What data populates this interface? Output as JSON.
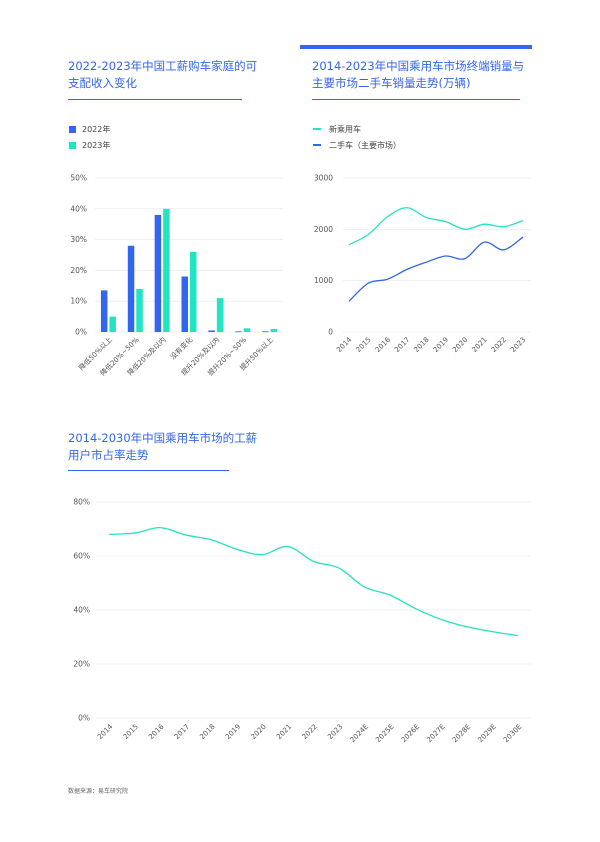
{
  "header": {
    "title1": "2022-2023年中国工薪购车家庭的可支配收入变化",
    "title2": "2014-2023年中国乘用车市场终端销量与主要市场二手车销量走势(万辆)",
    "title3": "2014-2030年中国乘用车市场的工薪用户市占率走势"
  },
  "legend1": [
    "2022年",
    "2023年"
  ],
  "legend2": [
    "新乘用车",
    "二手车（主要市场）"
  ],
  "source": "数据来源：易车研究院",
  "colors": {
    "blue": "#3366ee",
    "teal": "#22e3c2",
    "grid": "#e6e6e6",
    "axis_text": "#555555"
  },
  "chart_data": [
    {
      "type": "bar",
      "categories": [
        "降低50%以上",
        "降低20%~50%",
        "降低20%及以内",
        "没有变化",
        "提升20%及以内",
        "提升20%~50%",
        "提升50%以上"
      ],
      "series": [
        {
          "name": "2022年",
          "values": [
            13.5,
            28,
            38,
            18,
            0.5,
            0.2,
            0.2
          ]
        },
        {
          "name": "2023年",
          "values": [
            5,
            14,
            40,
            26,
            11,
            1.2,
            1
          ]
        }
      ],
      "yticks": [
        "0%",
        "10%",
        "20%",
        "30%",
        "40%",
        "50%"
      ],
      "ylim": [
        0,
        50
      ],
      "legend_position": "top-left"
    },
    {
      "type": "line",
      "x": [
        "2014",
        "2015",
        "2016",
        "2017",
        "2018",
        "2019",
        "2020",
        "2021",
        "2022",
        "2023"
      ],
      "series": [
        {
          "name": "新乘用车",
          "values": [
            1700,
            1900,
            2250,
            2420,
            2230,
            2150,
            2000,
            2100,
            2050,
            2170
          ]
        },
        {
          "name": "二手车（主要市场）",
          "values": [
            600,
            950,
            1030,
            1220,
            1360,
            1480,
            1430,
            1750,
            1600,
            1850
          ]
        }
      ],
      "yticks": [
        "0",
        "1000",
        "2000",
        "3000"
      ],
      "ylim": [
        0,
        3000
      ],
      "legend_position": "top-left"
    },
    {
      "type": "line",
      "x": [
        "2014",
        "2015",
        "2016",
        "2017",
        "2018",
        "2019",
        "2020",
        "2021",
        "2022",
        "2023",
        "2024E",
        "2025E",
        "2026E",
        "2027E",
        "2028E",
        "2029E",
        "2030E"
      ],
      "series": [
        {
          "values": [
            68,
            68.5,
            70.5,
            67.8,
            66,
            62.5,
            60.5,
            63.5,
            58,
            55.5,
            48.5,
            45.5,
            40.5,
            36.5,
            33.8,
            32,
            30.5
          ]
        }
      ],
      "yticks": [
        "0%",
        "20%",
        "40%",
        "60%",
        "80%"
      ],
      "ylim": [
        0,
        80
      ]
    }
  ]
}
